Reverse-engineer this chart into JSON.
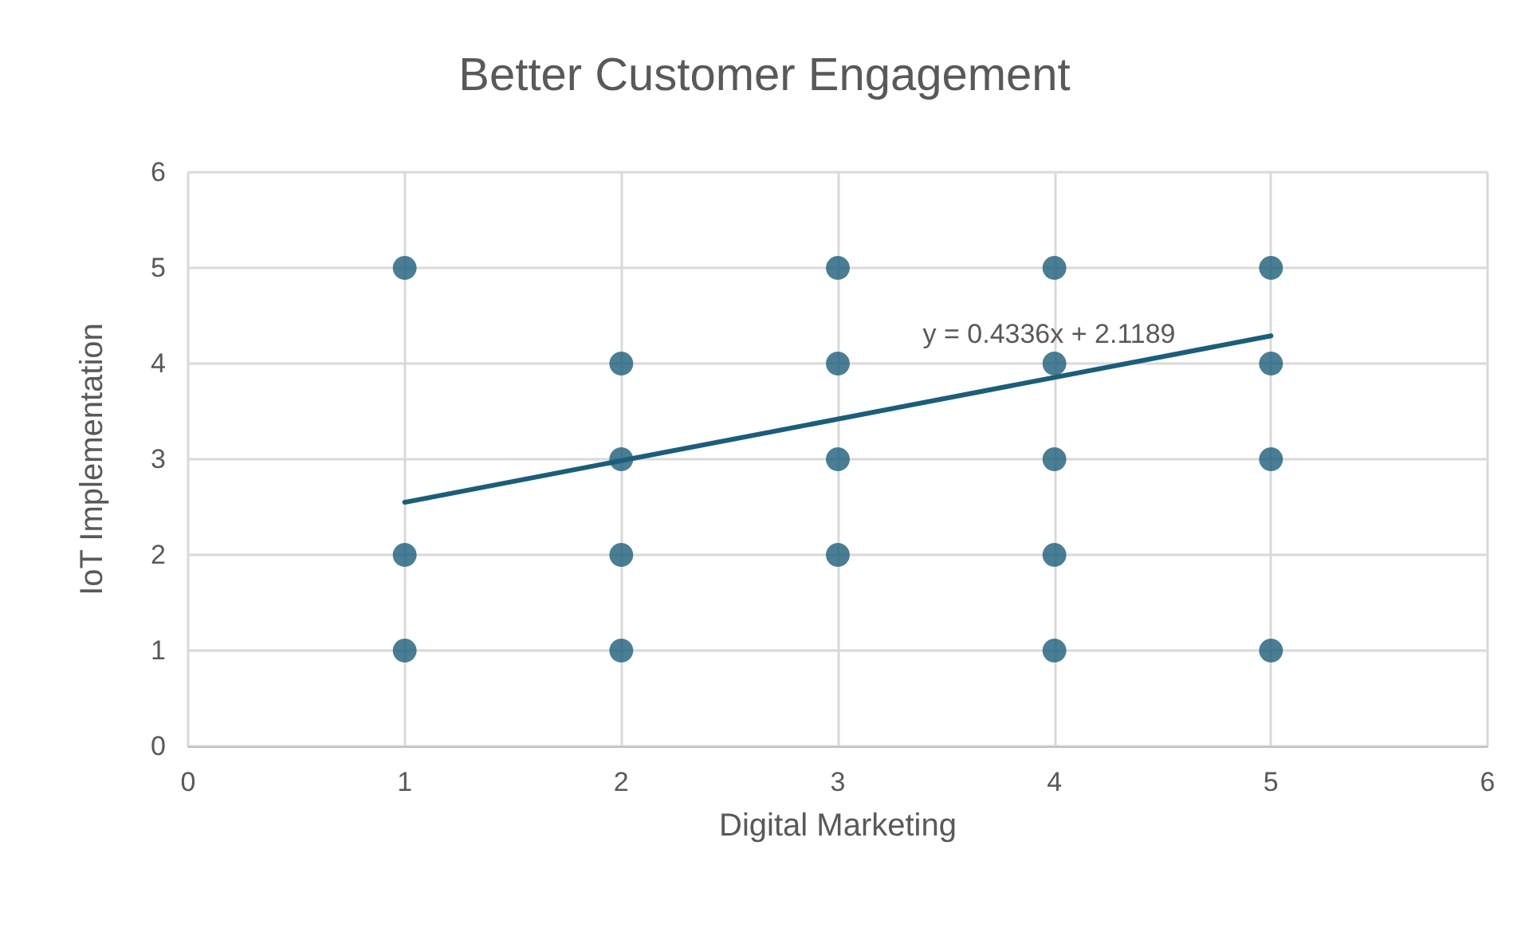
{
  "chart_data": {
    "type": "scatter",
    "title": "Better Customer Engagement",
    "xlabel": "Digital Marketing",
    "ylabel": "IoT Implementation",
    "series": [
      {
        "color": "#1b5e7b",
        "x": [
          1,
          1,
          1,
          2,
          2,
          2,
          2,
          3,
          3,
          3,
          3,
          4,
          4,
          4,
          4,
          4,
          5,
          5,
          5,
          5
        ],
        "values": [
          5,
          2,
          1,
          4,
          3,
          2,
          1,
          5,
          4,
          3,
          2,
          5,
          4,
          3,
          2,
          1,
          5,
          4,
          3,
          1
        ]
      },
      {
        "type": "line",
        "color": "#1b5e7b",
        "x": [
          1,
          5
        ],
        "values": [
          2.55,
          4.29
        ],
        "marker": "none"
      }
    ],
    "annotations": [
      "y = 0.4336x + 2.1189"
    ],
    "xlim": [
      0,
      6
    ],
    "xticks": [
      0,
      1,
      2,
      3,
      4,
      5,
      6
    ],
    "ylim": [
      0,
      6
    ],
    "yticks": [
      0,
      1,
      2,
      3,
      4,
      5,
      6
    ],
    "grid": true,
    "marker": "circle"
  }
}
